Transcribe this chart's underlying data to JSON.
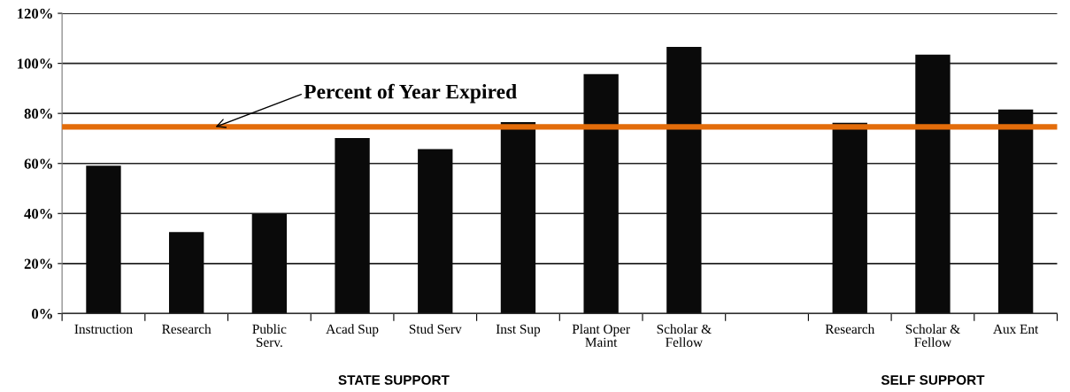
{
  "chart_data": {
    "type": "bar",
    "categories": [
      "Instruction",
      "Research",
      "Public\nServ.",
      "Acad Sup",
      "Stud Serv",
      "Inst Sup",
      "Plant Oper\nMaint",
      "Scholar &\nFellow",
      null,
      "Research",
      "Scholar &\nFellow",
      "Aux Ent"
    ],
    "values": [
      59.1,
      32.6,
      39.9,
      70.2,
      65.7,
      76.5,
      95.7,
      106.6,
      null,
      76.3,
      103.5,
      81.6
    ],
    "color": "#0a0a0a",
    "ylim": [
      0,
      120
    ],
    "yticks": [
      {
        "value": 0,
        "label": "0%"
      },
      {
        "value": 20,
        "label": "20%"
      },
      {
        "value": 40,
        "label": "40%"
      },
      {
        "value": 60,
        "label": "60%"
      },
      {
        "value": 80,
        "label": "80%"
      },
      {
        "value": 100,
        "label": "100%"
      },
      {
        "value": 120,
        "label": "120%"
      }
    ],
    "grid": "y",
    "ref_lines": [
      {
        "axis": "y",
        "value": 74.6,
        "label": "Percent of Year Expired",
        "color": "#e36c0a"
      }
    ],
    "annotations": [
      "STATE SUPPORT",
      "SELF SUPPORT"
    ]
  }
}
